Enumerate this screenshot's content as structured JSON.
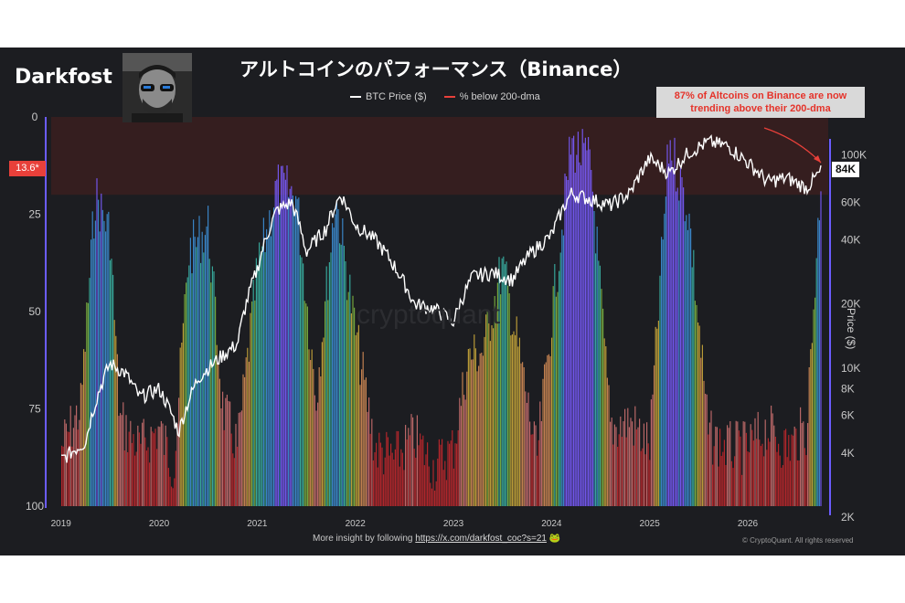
{
  "brand": "Darkfost",
  "title": "アルトコインのパフォーマンス（Binance）",
  "legend": [
    "BTC Price ($)",
    "% below 200-dma"
  ],
  "annotation": "87% of Altcoins on Binance are now trending above their 200-dma",
  "current_badge": "13.6*",
  "price_badge": "84K",
  "watermark": "cryptoquant",
  "footer": {
    "text": "More insight by following",
    "link": "https://x.com/darkfost_coc?s=21",
    "emoji": "🐸"
  },
  "copyright": "© CryptoQuant. All rights reserved",
  "colors": {
    "background": "#1c1d21",
    "btc_line": "#ffffff",
    "danger_zone": "#3a1f1f",
    "accent_red": "#e8403a"
  },
  "chart_data": {
    "type": "bar",
    "title": "アルトコインのパフォーマンス（Binance）",
    "ylabel_right": "Price ($)",
    "left_axis": {
      "ticks": [
        "0",
        "25",
        "50",
        "75",
        "100"
      ],
      "range": [
        0,
        100
      ],
      "inverted": true
    },
    "right_axis": {
      "ticks": [
        "100K",
        "60K",
        "40K",
        "20K",
        "10K",
        "8K",
        "6K",
        "4K",
        "2K"
      ],
      "values": [
        100000,
        60000,
        40000,
        20000,
        10000,
        8000,
        6000,
        4000,
        2000
      ],
      "scale": "log"
    },
    "x_ticks": [
      "2019",
      "2020",
      "2021",
      "2022",
      "2023",
      "2024",
      "2025",
      "2026"
    ],
    "danger_zone_pct": [
      0,
      20
    ],
    "latest_pct_below_200dma": 13.6,
    "latest_btc_price": 84000,
    "series": [
      {
        "name": "% below 200-dma",
        "x": [
          2019.0,
          2019.2,
          2019.35,
          2019.5,
          2019.6,
          2019.8,
          2020.0,
          2020.15,
          2020.3,
          2020.5,
          2020.65,
          2020.8,
          2021.0,
          2021.2,
          2021.4,
          2021.6,
          2021.8,
          2022.0,
          2022.2,
          2022.4,
          2022.6,
          2022.8,
          2023.0,
          2023.15,
          2023.3,
          2023.5,
          2023.7,
          2023.85,
          2024.0,
          2024.2,
          2024.4,
          2024.6,
          2024.8,
          2025.0,
          2025.2,
          2025.4,
          2025.6,
          2025.8,
          2026.0,
          2026.2,
          2026.4,
          2026.6,
          2026.75
        ],
        "values": [
          85,
          75,
          20,
          30,
          78,
          85,
          80,
          90,
          35,
          28,
          75,
          85,
          40,
          18,
          20,
          72,
          20,
          55,
          85,
          88,
          82,
          90,
          85,
          62,
          60,
          38,
          65,
          88,
          52,
          7,
          12,
          80,
          78,
          85,
          6,
          25,
          82,
          85,
          85,
          80,
          85,
          80,
          13.6
        ]
      },
      {
        "name": "BTC Price ($)",
        "x": [
          2019.0,
          2019.25,
          2019.5,
          2019.65,
          2019.8,
          2020.0,
          2020.2,
          2020.4,
          2020.6,
          2020.8,
          2021.0,
          2021.2,
          2021.35,
          2021.5,
          2021.7,
          2021.85,
          2022.0,
          2022.2,
          2022.4,
          2022.6,
          2022.8,
          2023.0,
          2023.2,
          2023.4,
          2023.6,
          2023.8,
          2024.0,
          2024.2,
          2024.4,
          2024.6,
          2024.8,
          2025.0,
          2025.2,
          2025.4,
          2025.6,
          2025.8,
          2026.0,
          2026.2,
          2026.4,
          2026.6,
          2026.75
        ],
        "values": [
          3700,
          4500,
          10500,
          9500,
          7300,
          8000,
          5000,
          9000,
          11000,
          13000,
          29000,
          55000,
          60000,
          35000,
          45000,
          65000,
          47000,
          40000,
          30000,
          20000,
          19000,
          16500,
          27000,
          28000,
          26000,
          35000,
          42000,
          66000,
          62000,
          58000,
          66000,
          96000,
          82000,
          103000,
          115000,
          110000,
          92000,
          75000,
          78000,
          70000,
          84000
        ]
      }
    ]
  }
}
